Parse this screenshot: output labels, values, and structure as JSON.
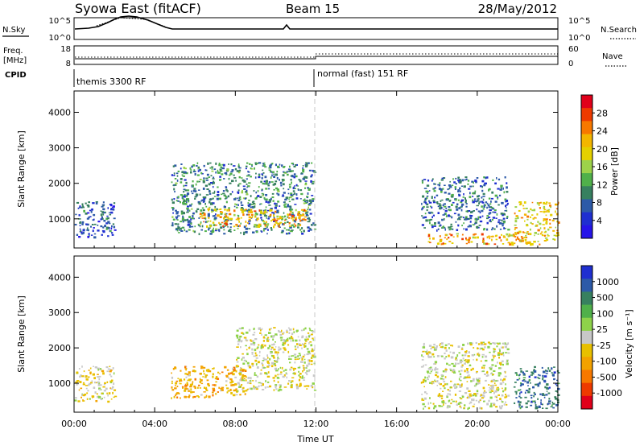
{
  "header": {
    "station": "Syowa East (fitACF)",
    "beam": "Beam 15",
    "date": "28/May/2012"
  },
  "panels": {
    "nsky_label": "N.Sky",
    "nsearch_label": "N.Search",
    "freq_label_1": "Freq.",
    "freq_label_2": "[MHz]",
    "nave_label": "Nave",
    "cpid_label": "CPID",
    "nsky_ticks": [
      "10^5",
      "10^0"
    ],
    "nsearch_ticks": [
      "10^5",
      "10^0"
    ],
    "freq_ticks": [
      "18",
      "8"
    ],
    "nave_ticks": [
      "60",
      "0"
    ],
    "cpid_segments": [
      "themis 3300 RF",
      "normal (fast) 151 RF"
    ]
  },
  "colorbars": {
    "power": {
      "label": "Power [dB]",
      "ticks": [
        "28",
        "24",
        "20",
        "16",
        "12",
        "8",
        "4"
      ],
      "colors": [
        "#e0001a",
        "#ee3a00",
        "#f77800",
        "#f3b600",
        "#e4d000",
        "#9dd24a",
        "#50b04a",
        "#37805f",
        "#2d5aa8",
        "#1f2fd0",
        "#2614e8"
      ]
    },
    "velocity": {
      "label": "Velocity [m s⁻¹]",
      "ticks": [
        "1000",
        "500",
        "100",
        "25",
        "-25",
        "-100",
        "-500",
        "-1000"
      ],
      "colors": [
        "#1f2fd0",
        "#2d5aa8",
        "#37805f",
        "#50b04a",
        "#8ed24a",
        "#c8c8c8",
        "#e8c000",
        "#f3a200",
        "#f77800",
        "#ee3a00",
        "#e0001a"
      ]
    }
  },
  "xaxis": {
    "title": "Time UT",
    "ticks": [
      "00:00",
      "04:00",
      "08:00",
      "12:00",
      "16:00",
      "20:00",
      "00:00"
    ]
  },
  "chart_data": [
    {
      "type": "heatmap",
      "title": "",
      "xlabel": "Time UT",
      "ylabel": "Slant Range [km]",
      "xlim": [
        0,
        24
      ],
      "ylim": [
        180,
        4600
      ],
      "yticks": [
        1000,
        2000,
        3000,
        4000
      ],
      "colorbar_label": "Power [dB]",
      "colorbar_ticks": [
        4,
        8,
        12,
        16,
        20,
        24,
        28
      ],
      "regions": [
        {
          "t0": 0.0,
          "t1": 2.0,
          "r0": 500,
          "r1": 1500,
          "value": 7
        },
        {
          "t0": 4.8,
          "t1": 11.9,
          "r0": 600,
          "r1": 2600,
          "value": 10
        },
        {
          "t0": 6.2,
          "t1": 11.5,
          "r0": 800,
          "r1": 1300,
          "value": 22
        },
        {
          "t0": 17.5,
          "t1": 21.8,
          "r0": 300,
          "r1": 600,
          "value": 22
        },
        {
          "t0": 17.2,
          "t1": 21.5,
          "r0": 700,
          "r1": 2200,
          "value": 9
        },
        {
          "t0": 21.8,
          "t1": 24.0,
          "r0": 300,
          "r1": 1500,
          "value": 20
        }
      ]
    },
    {
      "type": "heatmap",
      "title": "",
      "xlabel": "Time UT",
      "ylabel": "Slant Range [km]",
      "xlim": [
        0,
        24
      ],
      "ylim": [
        180,
        4600
      ],
      "yticks": [
        1000,
        2000,
        3000,
        4000
      ],
      "colorbar_label": "Velocity [m s⁻¹]",
      "colorbar_ticks": [
        1000,
        500,
        100,
        25,
        -25,
        -100,
        -500,
        -1000
      ],
      "regions": [
        {
          "t0": 0.0,
          "t1": 2.0,
          "r0": 500,
          "r1": 1500,
          "value": -100
        },
        {
          "t0": 4.8,
          "t1": 8.5,
          "r0": 600,
          "r1": 1500,
          "value": -300
        },
        {
          "t0": 8.0,
          "t1": 11.9,
          "r0": 800,
          "r1": 2600,
          "value": 0
        },
        {
          "t0": 17.2,
          "t1": 21.5,
          "r0": 300,
          "r1": 2200,
          "value": 0
        },
        {
          "t0": 21.8,
          "t1": 24.0,
          "r0": 300,
          "r1": 1500,
          "value": 700
        }
      ]
    }
  ]
}
